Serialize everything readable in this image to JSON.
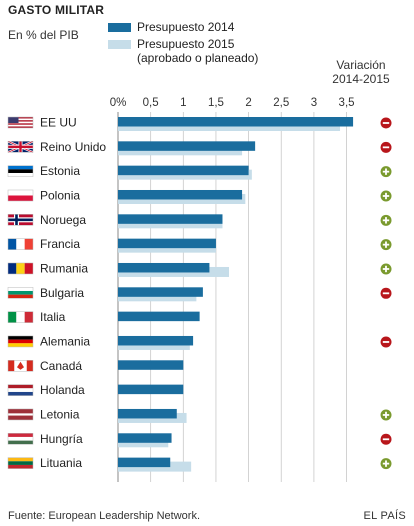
{
  "header": {
    "title": "GASTO MILITAR",
    "subtitle": "En % del PIB",
    "variation_label": "Variación",
    "variation_years": "2014-2015"
  },
  "legend": {
    "item1": "Presupuesto 2014",
    "item2_line1": "Presupuesto 2015",
    "item2_line2": "(aprobado o planeado)"
  },
  "footer": {
    "source": "Fuente: European Leadership Network.",
    "brand": "EL PAÍS"
  },
  "colors": {
    "series_2014": "#1a6d9e",
    "series_2015": "#c6dde9",
    "increase": "#7a9a2e",
    "decrease": "#b8161b"
  },
  "chart_data": {
    "type": "bar",
    "orientation": "horizontal",
    "xlim": [
      0,
      3.5
    ],
    "ticks": [
      "0%",
      "0,5",
      "1",
      "1,5",
      "2",
      "2,5",
      "3",
      "3,5"
    ],
    "tick_values": [
      0,
      0.5,
      1,
      1.5,
      2,
      2.5,
      3,
      3.5
    ],
    "categories": [
      "EE UU",
      "Reino Unido",
      "Estonia",
      "Polonia",
      "Noruega",
      "Francia",
      "Rumania",
      "Bulgaria",
      "Italia",
      "Alemania",
      "Canadá",
      "Holanda",
      "Letonia",
      "Hungría",
      "Lituania"
    ],
    "flags": [
      "us-flag",
      "uk-flag",
      "estonia-flag",
      "poland-flag",
      "norway-flag",
      "france-flag",
      "romania-flag",
      "bulgaria-flag",
      "italy-flag",
      "germany-flag",
      "canada-flag",
      "netherlands-flag",
      "latvia-flag",
      "hungary-flag",
      "lithuania-flag"
    ],
    "series": [
      {
        "name": "Presupuesto 2014",
        "values": [
          3.6,
          2.1,
          2.0,
          1.9,
          1.6,
          1.5,
          1.4,
          1.3,
          1.25,
          1.15,
          1.0,
          1.0,
          0.9,
          0.82,
          0.8
        ]
      },
      {
        "name": "Presupuesto 2015",
        "values": [
          3.4,
          1.9,
          2.05,
          1.95,
          1.6,
          1.5,
          1.7,
          1.2,
          null,
          1.1,
          null,
          null,
          1.05,
          0.77,
          1.12
        ]
      }
    ],
    "variation": [
      "decrease",
      "decrease",
      "increase",
      "increase",
      "increase",
      "increase",
      "increase",
      "decrease",
      "none",
      "decrease",
      "none",
      "none",
      "increase",
      "decrease",
      "increase"
    ],
    "grid": true
  }
}
